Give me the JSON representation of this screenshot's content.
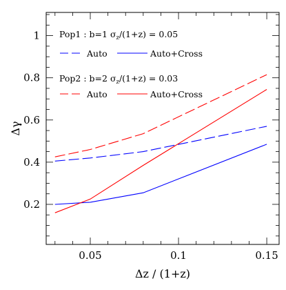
{
  "chart_data": {
    "type": "line",
    "xlabel": "Δz / (1+z)",
    "ylabel": "Δγ",
    "xlim": [
      0.025,
      0.157
    ],
    "ylim": [
      0.01,
      1.11
    ],
    "x_ticks": [
      0.05,
      0.1,
      0.15
    ],
    "x_tick_labels": [
      "0.05",
      "0.1",
      "0.15"
    ],
    "y_ticks": [
      0.2,
      0.4,
      0.6,
      0.8,
      1.0
    ],
    "y_tick_labels": [
      "0.2",
      "0.4",
      "0.6",
      "0.8",
      "1"
    ],
    "grid": false,
    "legend": {
      "group1_title": "Pop1 : b=1 σ",
      "group1_title_tail": "/(1+z) = 0.05",
      "group2_title": "Pop2 : b=2 σ",
      "group2_title_tail": "/(1+z) = 0.03",
      "sigma_sub": "z",
      "auto_label": "Auto",
      "cross_label": "Auto+Cross",
      "placement": "top-left"
    },
    "series": [
      {
        "name": "Auto",
        "population": "Pop1",
        "color": "#0000ff",
        "dash": true,
        "x": [
          0.03,
          0.05,
          0.08,
          0.15
        ],
        "y": [
          0.405,
          0.42,
          0.45,
          0.57
        ]
      },
      {
        "name": "Auto+Cross",
        "population": "Pop1",
        "color": "#0000ff",
        "dash": false,
        "x": [
          0.03,
          0.05,
          0.08,
          0.15
        ],
        "y": [
          0.2,
          0.21,
          0.255,
          0.485
        ]
      },
      {
        "name": "Auto",
        "population": "Pop2",
        "color": "#ff0000",
        "dash": true,
        "x": [
          0.03,
          0.05,
          0.08,
          0.15
        ],
        "y": [
          0.425,
          0.46,
          0.535,
          0.815
        ]
      },
      {
        "name": "Auto+Cross",
        "population": "Pop2",
        "color": "#ff0000",
        "dash": false,
        "x": [
          0.03,
          0.05,
          0.08,
          0.15
        ],
        "y": [
          0.16,
          0.225,
          0.385,
          0.745
        ]
      }
    ]
  }
}
